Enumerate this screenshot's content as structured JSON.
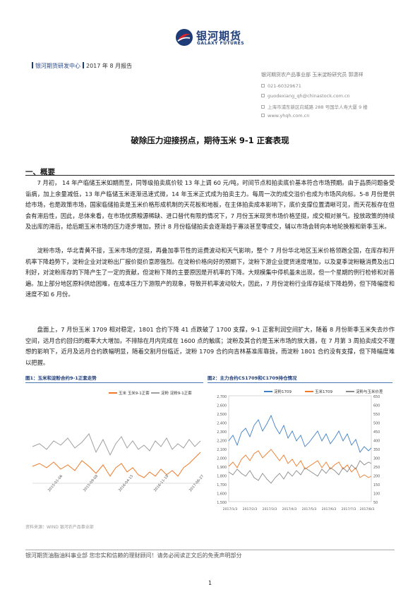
{
  "logo": {
    "cn": "银河期货",
    "en": "GALAXY FUTURES"
  },
  "header": {
    "dept": "银河期货研发中心",
    "date": "2017 年 8 月报告"
  },
  "contacts": {
    "dept_analyst": "银河期货农产品事业部         玉米淀粉研究员  郭潇祥",
    "phone": "021-60329671",
    "email": "guodexiang_qh@chinastock.com.cn",
    "address": "上海市浦东新区向城路 288 号国华人寿大厦 9 楼",
    "web": "www.yhqh.com.cn"
  },
  "title": "破除压力迎接拐点，期待玉米 9-1 正套表现",
  "section": {
    "heading": "一、概要"
  },
  "paragraphs": [
    "7 月初， 14 年产临储玉米如期而至，同等级拍卖底价较 13 年上调 60 元/吨，时间节点和拍卖底价基本符合市场预期。由于品质问题备受诟病，加上余量减低，13 年产临储玉米逐渐迅速式微，14 年玉米正式成为拍卖主力。每周一次的成交溢价也成为市场风向标。5-8 月份是供给市场，也是政策市场，国家临储拍卖是玉米价格形成机制的天花板和地板，在主体拍卖成本影响下，底价支撑位置清晰可见，而天花板存在但会有滞后性，因此，总体来看，在市场优质粮源稀缺、进口替代有限的情况下，7 月份玉米现货市场价格坚挺，成交相对景气。投放政策的持续及出库的滞后，给后期玉米市场的压力逐步增加，预计 8 月份临储拍卖会逐渐趋于寡淡甚至零成交，辅以市场会转向本地轮换粮和新季玉米。",
    "淀粉市场，华北青黄不接，玉米市场的坚挺，再叠加季节性的运费波动和天气影响，整个 7 月份华北地区玉米价格领跑全国，在库存和开机率下降趋势下，淀粉企业对淀粉出厂报价挺价意愿强烈。在淀粉价格向好的预期下，淀粉下游企业提货速度增加，以及夏季淀粉糖消费及出口利好，对淀粉库存的下降产生了一定的贡献，但淀粉下降的主要原因是开机率的下降。大规模集中停机虽未出现，但一个星期的例行检修和对普遍。加上部分地区原料供给困难，在成本压力下游限产的现象，导致开机率波动较大，因此，7 月份淀粉行业库存延续下降趋势，但下降幅度和速度不如 6 月份。",
    "盘面上，7 月份玉米 1709 相对稳定，1801 合约下降 41 点跌破了 1700 支撑，9-1 正套利润空间扩大，随着 8 月份新季玉米失去炒作空间，远月合约回归的概率大大增加，不排除在月内完成在 1600 点的触底；淀粉及其合约是玉米市场的放大器，在 7 月第 3 周拍卖成交不理想的影响下，近月及远月合约跌幅明显，随着交割月份临近，淀粉 1709 合约向吉林基准库靠拢，而淀粉 1801 合约没有支撑，但下降幅度难以把握。"
  ],
  "figures": {
    "fig1": {
      "caption": "图1：玉米和淀粉合约9-1正套走势",
      "legend": [
        "玉米 玉米9-1正套",
        "淀粉 淀粉9-1正套"
      ],
      "colors": [
        "#f07a2a",
        "#a0a0a0"
      ],
      "xticks": [
        "2015-01-06",
        "2015-09-08",
        "2016-04-15",
        "2016-11-18",
        "2017-06-27"
      ]
    },
    "fig2": {
      "caption": "图2：主力合约CS1709和C1709持仓情况",
      "legend": [
        "淀粉1709",
        "玉米1709",
        "淀粉与玉米价差"
      ],
      "colors": [
        "#3f7fc6",
        "#f07a2a",
        "#8a8a8a"
      ],
      "yleft": [
        "2,700",
        "2,600",
        "2,500",
        "2,400",
        "2,300",
        "2,200",
        "2,100",
        "2,000",
        "1,900",
        "1,800",
        "1,700",
        "1,600",
        "1,500"
      ],
      "yright": [
        "650",
        "600",
        "550",
        "500",
        "450",
        "400",
        "350",
        "300",
        "250",
        "200",
        "150",
        "100",
        "50"
      ],
      "xticks": [
        "2017/1/3",
        "2017/2/3",
        "2017/3/3",
        "2017/4/3",
        "2017/5/3",
        "2017/6/3",
        "2017/7/3",
        "2017/8/3"
      ]
    }
  },
  "source": "资料来源：WIND  银河农产品事业部",
  "footer": "银河期货油脂油料事业部 您忠实和信赖的理财顾问！请务必阅读正文后的免责声明部分",
  "page_number": "1"
}
